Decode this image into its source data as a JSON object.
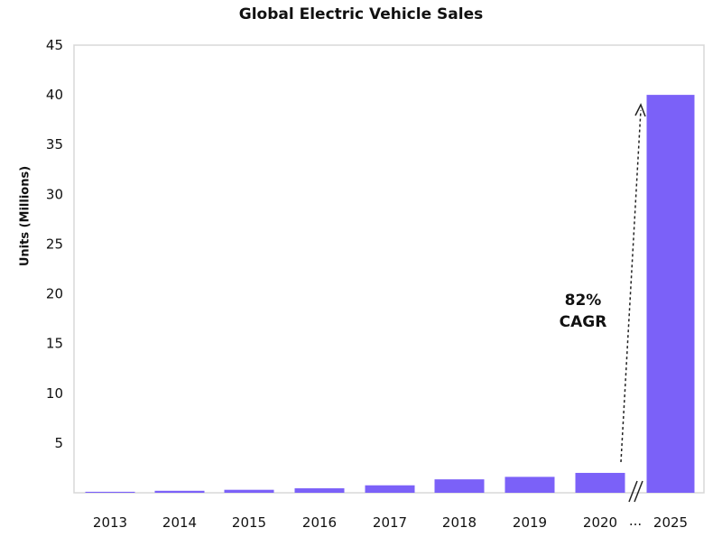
{
  "chart_data": {
    "type": "bar",
    "title": "Global Electric Vehicle Sales",
    "xlabel": "",
    "ylabel": "Units (Millions)",
    "categories": [
      "2013",
      "2014",
      "2015",
      "2016",
      "2017",
      "2018",
      "2019",
      "2020",
      "2025"
    ],
    "values": [
      0.1,
      0.2,
      0.3,
      0.45,
      0.75,
      1.35,
      1.6,
      2.0,
      40
    ],
    "ylim": [
      0,
      45
    ],
    "yticks": [
      5,
      10,
      15,
      20,
      25,
      30,
      35,
      40,
      45
    ],
    "axis_break_label": "...",
    "annotation": {
      "lines": [
        "82%",
        "CAGR"
      ],
      "from": "2020",
      "to": "2025"
    },
    "grid": false,
    "bar_color": "#7B61F8"
  }
}
